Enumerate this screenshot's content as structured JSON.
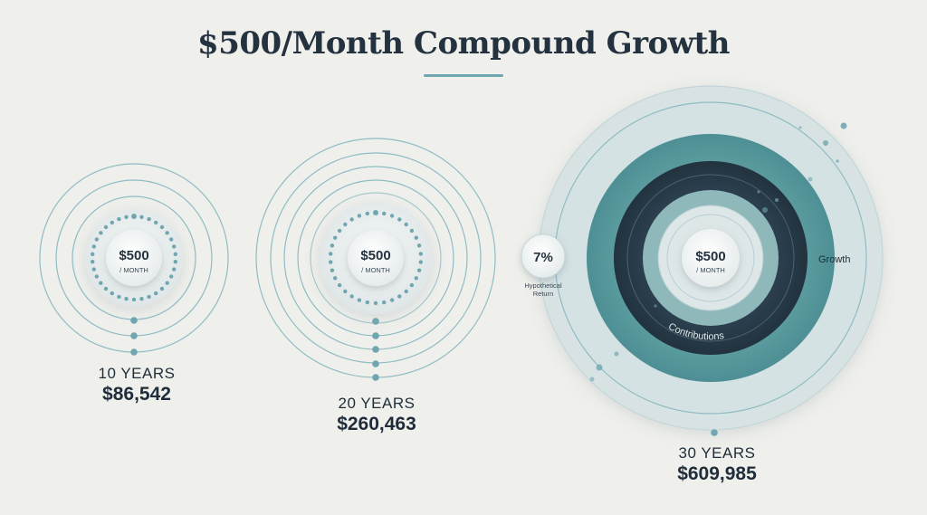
{
  "title": "$500/Month Compound Growth",
  "center_amount": "$500",
  "center_unit": "/ MONTH",
  "rate": {
    "value": "7%",
    "label_line1": "Hypothetical",
    "label_line2": "Return"
  },
  "ring_labels": {
    "growth": "Growth",
    "contributions": "Contributions"
  },
  "colors": {
    "title": "#243240",
    "accent": "#6fa6b0",
    "contributions": "#2a3d4d",
    "growth": "#5f9fa3",
    "background": "#eff0ec"
  },
  "periods": [
    {
      "years_label": "10 YEARS",
      "value_label": "$86,542",
      "value": 86542
    },
    {
      "years_label": "20 YEARS",
      "value_label": "$260,463",
      "value": 260463
    },
    {
      "years_label": "30 YEARS",
      "value_label": "$609,985",
      "value": 609985
    }
  ]
}
